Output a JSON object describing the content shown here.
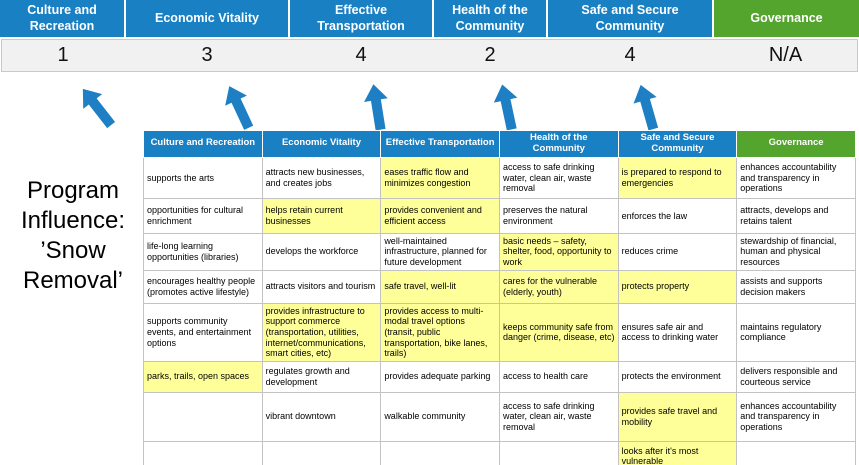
{
  "title": {
    "text": "Program Influence: ’Snow Removal’",
    "lines": [
      "Program",
      "Influence:",
      "’Snow",
      "Removal’"
    ]
  },
  "colors": {
    "header_blue": "#1a80c4",
    "header_green": "#54a52e",
    "highlight_yellow": "#ffff99",
    "arrow_blue": "#1e7fc4",
    "score_band_gray": "#f1f1f1"
  },
  "banner": {
    "categories": [
      {
        "label": "Culture and Recreation",
        "score": "1",
        "color": "#1a80c4"
      },
      {
        "label": "Economic Vitality",
        "score": "3",
        "color": "#1a80c4"
      },
      {
        "label": "Effective Transportation",
        "score": "4",
        "color": "#1a80c4"
      },
      {
        "label": "Health of the Community",
        "score": "2",
        "color": "#1a80c4"
      },
      {
        "label": "Safe and Secure Community",
        "score": "4",
        "color": "#1a80c4"
      },
      {
        "label": "Governance",
        "score": "N/A",
        "color": "#54a52e"
      }
    ]
  },
  "table": {
    "headers": [
      {
        "label": "Culture and Recreation",
        "color": "#1a80c4"
      },
      {
        "label": "Economic Vitality",
        "color": "#1a80c4"
      },
      {
        "label": "Effective Transportation",
        "color": "#1a80c4"
      },
      {
        "label": "Health of the Community",
        "color": "#1a80c4"
      },
      {
        "label": "Safe and Secure Community",
        "color": "#1a80c4"
      },
      {
        "label": "Governance",
        "color": "#54a52e"
      }
    ],
    "rows": [
      [
        {
          "text": "supports the arts",
          "highlight": false
        },
        {
          "text": "attracts new businesses, and creates jobs",
          "highlight": false
        },
        {
          "text": "eases traffic flow and minimizes congestion",
          "highlight": true
        },
        {
          "text": "access to safe drinking water, clean air, waste removal",
          "highlight": false
        },
        {
          "text": "is prepared to respond to emergencies",
          "highlight": true
        },
        {
          "text": "enhances accountability and transparency in operations",
          "highlight": false
        }
      ],
      [
        {
          "text": "opportunities for cultural enrichment",
          "highlight": false
        },
        {
          "text": "helps retain current businesses",
          "highlight": true
        },
        {
          "text": "provides convenient and efficient access",
          "highlight": true
        },
        {
          "text": "preserves the natural environment",
          "highlight": false
        },
        {
          "text": "enforces the law",
          "highlight": false
        },
        {
          "text": "attracts, develops and retains talent",
          "highlight": false
        }
      ],
      [
        {
          "text": "life-long learning opportunities (libraries)",
          "highlight": false
        },
        {
          "text": "develops the workforce",
          "highlight": false
        },
        {
          "text": "well-maintained infrastructure, planned for future development",
          "highlight": false
        },
        {
          "text": "basic needs – safety, shelter, food, opportunity to work",
          "highlight": true
        },
        {
          "text": "reduces crime",
          "highlight": false
        },
        {
          "text": "stewardship of financial, human and physical resources",
          "highlight": false
        }
      ],
      [
        {
          "text": "encourages healthy people (promotes active lifestyle)",
          "highlight": false
        },
        {
          "text": "attracts visitors and tourism",
          "highlight": false
        },
        {
          "text": "safe travel, well-lit",
          "highlight": true
        },
        {
          "text": "cares for the vulnerable (elderly, youth)",
          "highlight": true
        },
        {
          "text": "protects property",
          "highlight": true
        },
        {
          "text": "assists and supports decision makers",
          "highlight": false
        }
      ],
      [
        {
          "text": "supports community events, and entertainment options",
          "highlight": false
        },
        {
          "text": "provides infrastructure to support commerce (transportation, utilities, internet/communications, smart cities, etc)",
          "highlight": true
        },
        {
          "text": "provides access to multi-modal travel options (transit, public transportation, bike lanes, trails)",
          "highlight": true
        },
        {
          "text": "keeps community safe from danger (crime, disease, etc)",
          "highlight": true
        },
        {
          "text": "ensures safe air and access to drinking water",
          "highlight": false
        },
        {
          "text": "maintains regulatory compliance",
          "highlight": false
        }
      ],
      [
        {
          "text": "parks, trails, open spaces",
          "highlight": true
        },
        {
          "text": "regulates growth and development",
          "highlight": false
        },
        {
          "text": "provides adequate parking",
          "highlight": false
        },
        {
          "text": "access to health care",
          "highlight": false
        },
        {
          "text": "protects the environment",
          "highlight": false
        },
        {
          "text": "delivers responsible and courteous service",
          "highlight": false
        }
      ],
      [
        {
          "text": "",
          "highlight": false
        },
        {
          "text": "vibrant downtown",
          "highlight": false
        },
        {
          "text": "walkable community",
          "highlight": false
        },
        {
          "text": "access to safe drinking water, clean air, waste removal",
          "highlight": false
        },
        {
          "text": "provides safe travel and mobility",
          "highlight": true
        },
        {
          "text": "enhances accountability and transparency in operations",
          "highlight": false
        }
      ],
      [
        {
          "text": "",
          "highlight": false
        },
        {
          "text": "",
          "highlight": false
        },
        {
          "text": "",
          "highlight": false
        },
        {
          "text": "",
          "highlight": false
        },
        {
          "text": "looks after it's most vulnerable",
          "highlight": true
        },
        {
          "text": "",
          "highlight": false
        }
      ]
    ]
  }
}
